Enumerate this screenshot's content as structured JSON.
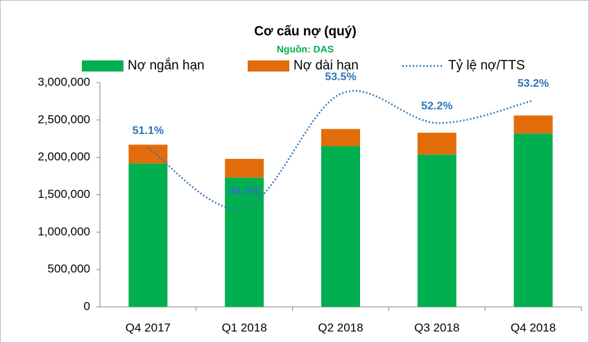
{
  "chart_data": {
    "type": "bar",
    "title": "Cơ cấu nợ (quý)",
    "subtitle": "Nguồn: DAS",
    "stacked": true,
    "grid": false,
    "categories": [
      "Q4 2017",
      "Q1 2018",
      "Q2 2018",
      "Q3 2018",
      "Q4 2018"
    ],
    "series": [
      {
        "name": "Nợ ngắn hạn",
        "type": "bar",
        "color": "#00b050",
        "values": [
          1920000,
          1730000,
          2150000,
          2040000,
          2320000
        ]
      },
      {
        "name": "Nợ dài hạn",
        "type": "bar",
        "color": "#e36c0a",
        "values": [
          250000,
          250000,
          230000,
          290000,
          240000
        ]
      },
      {
        "name": "Tỷ lệ nợ/TTS",
        "type": "line",
        "axis": "y2",
        "color": "#2e75b6",
        "line_style": "dotted",
        "smooth": true,
        "values": [
          51.1,
          48.4,
          53.5,
          52.2,
          53.2
        ],
        "value_labels": [
          "51.1%",
          "48.4%",
          "53.5%",
          "52.2%",
          "53.2%"
        ]
      }
    ],
    "ylim": [
      0,
      3000000
    ],
    "yticks": [
      {
        "value": 0,
        "label": "0"
      },
      {
        "value": 500000,
        "label": "500,000"
      },
      {
        "value": 1000000,
        "label": "1,000,000"
      },
      {
        "value": 1500000,
        "label": "1,500,000"
      },
      {
        "value": 2000000,
        "label": "2,000,000"
      },
      {
        "value": 2500000,
        "label": "2,500,000"
      },
      {
        "value": 3000000,
        "label": "3,000,000"
      }
    ],
    "y2lim": [
      44,
      54
    ],
    "legend": "top"
  }
}
